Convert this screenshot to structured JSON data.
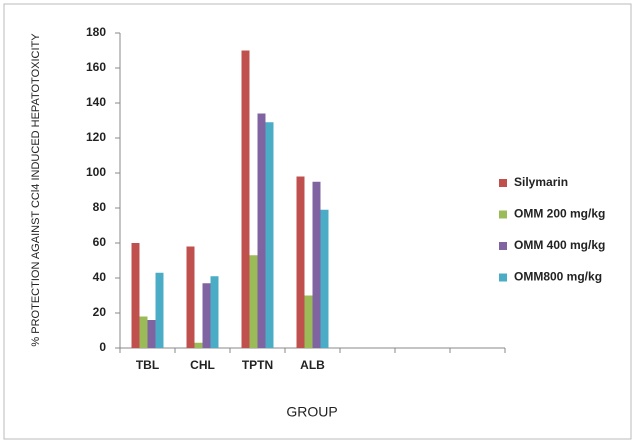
{
  "chart_data": {
    "type": "bar",
    "x_label": "GROUP",
    "y_label": "% PROTECTION AGAINST CCl4 INDUCED HEPATOTOXICITY",
    "categories": [
      "TBL",
      "CHL",
      "TPTN",
      "ALB",
      null,
      null,
      null
    ],
    "series": [
      {
        "name": "Silymarin",
        "color": "#c0504d",
        "values": [
          60,
          58,
          170,
          98,
          null,
          null,
          null
        ]
      },
      {
        "name": "OMM 200 mg/kg",
        "color": "#9bbb59",
        "values": [
          18,
          3,
          53,
          30,
          null,
          null,
          null
        ]
      },
      {
        "name": "OMM 400 mg/kg",
        "color": "#8064a2",
        "values": [
          16,
          37,
          134,
          95,
          null,
          null,
          null
        ]
      },
      {
        "name": "OMM800 mg/kg",
        "color": "#4bacc6",
        "values": [
          43,
          41,
          129,
          79,
          null,
          null,
          null
        ]
      }
    ],
    "ylim": [
      0,
      180
    ],
    "yticks": [
      0,
      20,
      40,
      60,
      80,
      100,
      120,
      140,
      160,
      180
    ],
    "grid": false,
    "legend": "right"
  }
}
